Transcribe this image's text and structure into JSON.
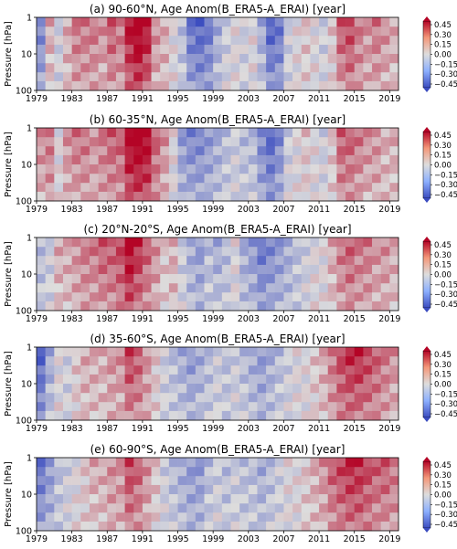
{
  "colors": {
    "anomaly_negative": "#3b4cc0",
    "anomaly_zero": "#dddddd",
    "anomaly_positive": "#b40426"
  },
  "chart_data": [
    {
      "type": "heatmap",
      "title": "(a) 90-60°N, Age Anom(B_ERA5-A_ERAI) [year]",
      "xlabel": "",
      "ylabel": "Pressure [hPa]",
      "xlim": [
        1979,
        2020
      ],
      "ylim": [
        100,
        1
      ],
      "y_scale": "log",
      "x_tick_labels": [
        "1979",
        "1983",
        "1987",
        "1991",
        "1995",
        "1999",
        "2003",
        "2007",
        "2011",
        "2015",
        "2019"
      ],
      "y_tick_labels": [
        "1",
        "10",
        "100"
      ],
      "colorbar_ticks": [
        "0.45",
        "0.30",
        "0.15",
        "0.00",
        "−0.15",
        "−0.30",
        "−0.45"
      ],
      "colorbar_range": [
        -0.45,
        0.45
      ],
      "year_anomaly": [
        -0.25,
        0.1,
        -0.05,
        0.1,
        0.2,
        0.2,
        0.2,
        0.15,
        0.25,
        0.2,
        0.4,
        0.5,
        0.4,
        0.15,
        0.1,
        0.0,
        -0.1,
        -0.3,
        -0.35,
        -0.3,
        -0.15,
        -0.05,
        0.0,
        -0.05,
        0.0,
        -0.15,
        -0.35,
        -0.3,
        -0.05,
        0.0,
        0.05,
        0.0,
        -0.05,
        0.05,
        0.25,
        0.3,
        0.2,
        0.15,
        0.2,
        0.15,
        0.1
      ]
    },
    {
      "type": "heatmap",
      "title": "(b) 60-35°N, Age Anom(B_ERA5-A_ERAI) [year]",
      "xlabel": "",
      "ylabel": "Pressure [hPa]",
      "xlim": [
        1979,
        2020
      ],
      "ylim": [
        100,
        1
      ],
      "y_scale": "log",
      "x_tick_labels": [
        "1979",
        "1983",
        "1987",
        "1991",
        "1995",
        "1999",
        "2003",
        "2007",
        "2011",
        "2015",
        "2019"
      ],
      "y_tick_labels": [
        "1",
        "10",
        "100"
      ],
      "colorbar_ticks": [
        "0.45",
        "0.30",
        "0.15",
        "0.00",
        "−0.15",
        "−0.30",
        "−0.45"
      ],
      "colorbar_range": [
        -0.45,
        0.45
      ],
      "year_anomaly": [
        0.15,
        0.2,
        0.0,
        0.15,
        0.2,
        0.2,
        0.15,
        0.2,
        0.25,
        0.25,
        0.45,
        0.5,
        0.45,
        0.25,
        0.15,
        0.0,
        -0.2,
        -0.25,
        -0.25,
        -0.2,
        -0.15,
        -0.1,
        -0.05,
        -0.1,
        -0.1,
        -0.25,
        -0.35,
        -0.25,
        -0.05,
        0.0,
        0.05,
        0.0,
        -0.05,
        0.05,
        0.25,
        0.25,
        0.2,
        0.15,
        0.15,
        0.1,
        0.1
      ]
    },
    {
      "type": "heatmap",
      "title": "(c) 20°N-20°S, Age Anom(B_ERA5-A_ERAI) [year]",
      "xlabel": "",
      "ylabel": "Pressure [hPa]",
      "xlim": [
        1979,
        2020
      ],
      "ylim": [
        100,
        1
      ],
      "y_scale": "log",
      "x_tick_labels": [
        "1979",
        "1983",
        "1987",
        "1991",
        "1995",
        "1999",
        "2003",
        "2007",
        "2011",
        "2015",
        "2019"
      ],
      "y_tick_labels": [
        "1",
        "10",
        "100"
      ],
      "colorbar_ticks": [
        "0.45",
        "0.30",
        "0.15",
        "0.00",
        "−0.15",
        "−0.30",
        "−0.45"
      ],
      "colorbar_range": [
        -0.45,
        0.45
      ],
      "year_anomaly": [
        -0.1,
        -0.05,
        0.1,
        0.1,
        0.15,
        0.2,
        0.2,
        0.25,
        0.25,
        0.3,
        0.45,
        0.35,
        0.25,
        0.15,
        0.05,
        0.1,
        -0.05,
        -0.15,
        -0.2,
        -0.1,
        -0.15,
        -0.1,
        0.0,
        -0.15,
        -0.2,
        -0.3,
        -0.25,
        -0.2,
        -0.15,
        -0.1,
        -0.05,
        0.0,
        0.0,
        0.1,
        0.2,
        0.25,
        0.2,
        0.2,
        0.15,
        0.15,
        0.1
      ]
    },
    {
      "type": "heatmap",
      "title": "(d) 35-60°S, Age Anom(B_ERA5-A_ERAI) [year]",
      "xlabel": "",
      "ylabel": "Pressure [hPa]",
      "xlim": [
        1979,
        2020
      ],
      "ylim": [
        100,
        1
      ],
      "y_scale": "log",
      "x_tick_labels": [
        "1979",
        "1983",
        "1987",
        "1991",
        "1995",
        "1999",
        "2003",
        "2007",
        "2011",
        "2015",
        "2019"
      ],
      "y_tick_labels": [
        "1",
        "10",
        "100"
      ],
      "colorbar_ticks": [
        "0.45",
        "0.30",
        "0.15",
        "0.00",
        "−0.15",
        "−0.30",
        "−0.45"
      ],
      "colorbar_range": [
        -0.45,
        0.45
      ],
      "year_anomaly": [
        -0.35,
        -0.15,
        0.0,
        -0.05,
        0.05,
        0.1,
        0.1,
        0.1,
        0.15,
        0.15,
        0.3,
        0.25,
        0.15,
        0.05,
        -0.05,
        -0.1,
        -0.15,
        -0.2,
        -0.15,
        -0.1,
        -0.05,
        -0.1,
        -0.05,
        -0.1,
        -0.15,
        -0.2,
        -0.15,
        -0.1,
        -0.05,
        0.0,
        0.0,
        0.05,
        0.1,
        0.2,
        0.3,
        0.35,
        0.35,
        0.3,
        0.25,
        0.2,
        0.15
      ]
    },
    {
      "type": "heatmap",
      "title": "(e) 60-90°S, Age Anom(B_ERA5-A_ERAI) [year]",
      "xlabel": "",
      "ylabel": "Pressure [hPa]",
      "xlim": [
        1979,
        2020
      ],
      "ylim": [
        100,
        1
      ],
      "y_scale": "log",
      "x_tick_labels": [
        "1979",
        "1983",
        "1987",
        "1991",
        "1995",
        "1999",
        "2003",
        "2007",
        "2011",
        "2015",
        "2019"
      ],
      "y_tick_labels": [
        "1",
        "10",
        "100"
      ],
      "colorbar_ticks": [
        "0.45",
        "0.30",
        "0.15",
        "0.00",
        "−0.15",
        "−0.30",
        "−0.45"
      ],
      "colorbar_range": [
        -0.45,
        0.45
      ],
      "year_anomaly": [
        -0.3,
        -0.2,
        -0.1,
        -0.05,
        0.0,
        0.05,
        0.1,
        0.1,
        0.15,
        0.15,
        0.3,
        0.25,
        0.15,
        0.05,
        -0.05,
        -0.1,
        -0.15,
        -0.2,
        -0.2,
        -0.1,
        -0.05,
        -0.1,
        -0.05,
        -0.1,
        -0.1,
        -0.15,
        -0.1,
        -0.05,
        0.0,
        0.0,
        0.05,
        0.1,
        0.15,
        0.25,
        0.3,
        0.35,
        0.35,
        0.3,
        0.25,
        0.25,
        0.2
      ]
    }
  ]
}
